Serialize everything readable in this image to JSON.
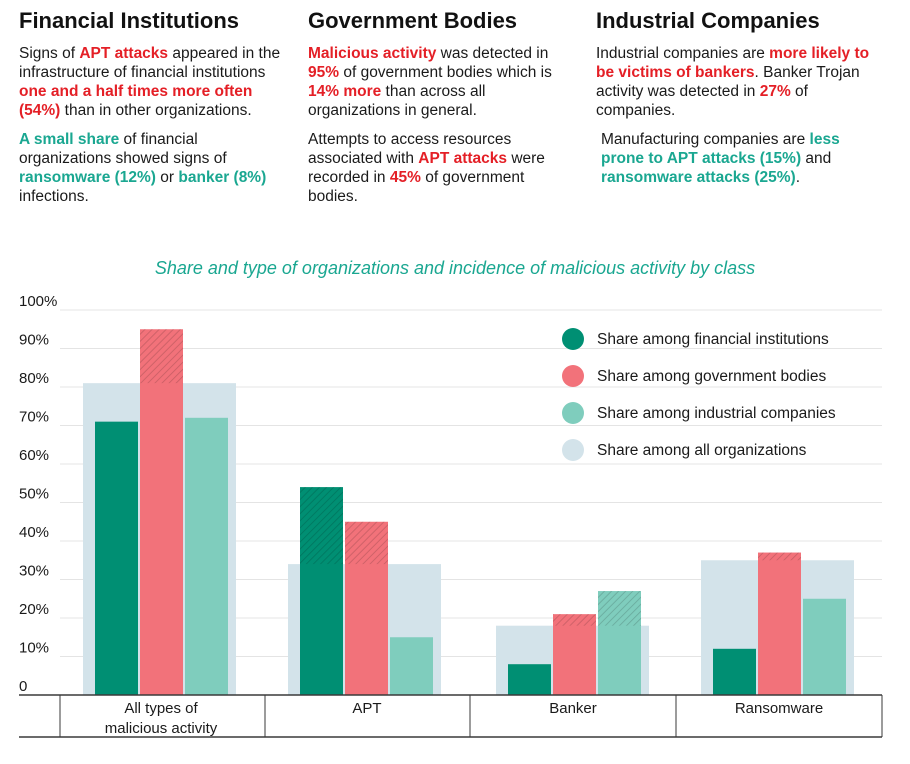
{
  "columns": [
    {
      "title": "Financial Institutions",
      "paragraphs": [
        [
          {
            "t": "Signs of ",
            "c": ""
          },
          {
            "t": "APT attacks",
            "c": "red"
          },
          {
            "t": " appeared in the infrastructure of financial institutions ",
            "c": ""
          },
          {
            "t": "one and a half times more often (54%)",
            "c": "red"
          },
          {
            "t": " than in other organizations.",
            "c": ""
          }
        ],
        [
          {
            "t": "A small share",
            "c": "teal"
          },
          {
            "t": " of financial organizations showed signs of ",
            "c": ""
          },
          {
            "t": "ransomware (12%)",
            "c": "teal"
          },
          {
            "t": " or ",
            "c": ""
          },
          {
            "t": "banker (8%)",
            "c": "teal"
          },
          {
            "t": " infections.",
            "c": ""
          }
        ]
      ]
    },
    {
      "title": "Government Bodies",
      "paragraphs": [
        [
          {
            "t": "Malicious activity",
            "c": "red"
          },
          {
            "t": " was detected in ",
            "c": ""
          },
          {
            "t": "95%",
            "c": "red"
          },
          {
            "t": " of government bodies which is ",
            "c": ""
          },
          {
            "t": "14% more",
            "c": "red"
          },
          {
            "t": " than across all organizations in general.",
            "c": ""
          }
        ],
        [
          {
            "t": "Attempts to access resources associated with ",
            "c": ""
          },
          {
            "t": "APT attacks",
            "c": "red"
          },
          {
            "t": " were recorded in ",
            "c": ""
          },
          {
            "t": "45%",
            "c": "red"
          },
          {
            "t": " of government bodies.",
            "c": ""
          }
        ]
      ]
    },
    {
      "title": "Industrial Companies",
      "paragraphs": [
        [
          {
            "t": "Industrial companies are ",
            "c": ""
          },
          {
            "t": "more likely to be victims of bankers",
            "c": "red"
          },
          {
            "t": ". Banker Trojan activity was detected in ",
            "c": ""
          },
          {
            "t": "27%",
            "c": "red"
          },
          {
            "t": " of companies.",
            "c": ""
          }
        ],
        [
          {
            "t": "Manufacturing companies are ",
            "c": ""
          },
          {
            "t": "less prone to APT attacks (15%)",
            "c": "teal"
          },
          {
            "t": " and ",
            "c": ""
          },
          {
            "t": "ransomware attacks (25%)",
            "c": "teal"
          },
          {
            "t": ".",
            "c": ""
          }
        ]
      ]
    }
  ],
  "colors": {
    "highlight_red": "#e41f26",
    "highlight_teal": "#1aa791",
    "financial": "#008f73",
    "government": "#f2727a",
    "industrial": "#7fcdbd",
    "all": "#d3e3ea"
  },
  "chart_data": {
    "type": "bar",
    "title": "Share and type of organizations and incidence of malicious activity by class",
    "categories": [
      "All types of malicious activity",
      "APT",
      "Banker",
      "Ransomware"
    ],
    "series": [
      {
        "name": "Share among financial institutions",
        "values": [
          71,
          54,
          8,
          12
        ]
      },
      {
        "name": "Share among government bodies",
        "values": [
          95,
          45,
          21,
          37
        ]
      },
      {
        "name": "Share among industrial companies",
        "values": [
          72,
          15,
          27,
          25
        ]
      },
      {
        "name": "Share among all organizations",
        "values": [
          81,
          34,
          18,
          35
        ]
      }
    ],
    "ylim": [
      0,
      100
    ],
    "yticks": [
      "0",
      "10%",
      "20%",
      "30%",
      "40%",
      "50%",
      "60%",
      "70%",
      "80%",
      "90%",
      "100%"
    ],
    "grid": true,
    "legend": "top-right"
  }
}
